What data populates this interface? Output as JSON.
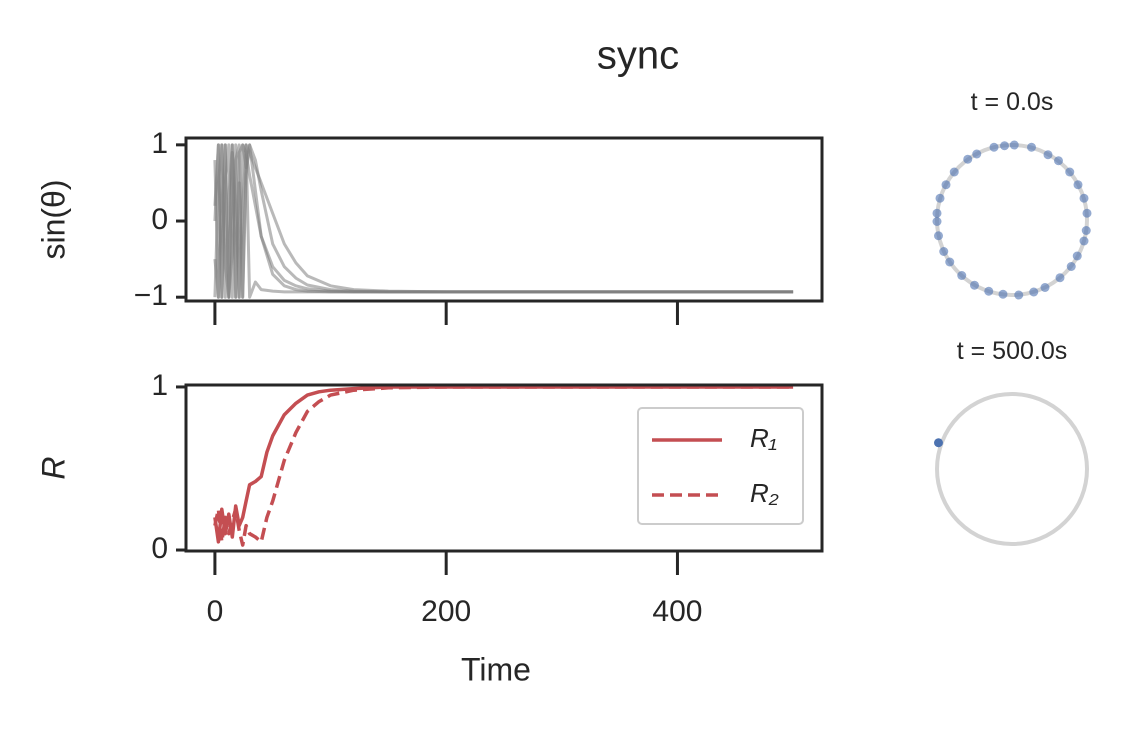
{
  "title": "sync",
  "chart_data": [
    {
      "type": "line",
      "ylabel": "sin(θ)",
      "x": [
        0,
        3,
        6,
        9,
        12,
        15,
        18,
        21,
        24,
        27,
        30,
        35,
        40,
        50,
        60,
        70,
        80,
        100,
        120,
        150,
        200,
        300,
        400,
        500
      ],
      "series": [
        {
          "color": "#808080",
          "values": [
            0.2,
            1,
            -1,
            0.5,
            1,
            -1,
            0.8,
            1,
            -1,
            0.6,
            1,
            0.4,
            -0.2,
            -0.6,
            -0.78,
            -0.85,
            -0.89,
            -0.92,
            -0.93,
            -0.93,
            -0.93,
            -0.93,
            -0.93,
            -0.93
          ]
        },
        {
          "color": "#808080",
          "values": [
            -0.5,
            -1,
            1,
            -1,
            0.3,
            1,
            -1,
            0.9,
            1,
            0.7,
            1,
            0.8,
            0.4,
            -0.3,
            -0.6,
            -0.75,
            -0.84,
            -0.9,
            -0.92,
            -0.93,
            -0.93,
            -0.93,
            -0.93,
            -0.93
          ]
        },
        {
          "color": "#808080",
          "values": [
            0.8,
            -1,
            0.2,
            1,
            -1,
            -0.4,
            1,
            -1,
            0.2,
            1,
            -1,
            -0.8,
            -0.9,
            -0.92,
            -0.93,
            -0.93,
            -0.93,
            -0.93,
            -0.93,
            -0.93,
            -0.93,
            -0.93,
            -0.93,
            -0.93
          ]
        },
        {
          "color": "#808080",
          "values": [
            -1,
            0.5,
            1,
            -0.6,
            -1,
            0.9,
            0.2,
            -1,
            1,
            0.9,
            0.6,
            0.2,
            -0.2,
            -0.7,
            -0.85,
            -0.9,
            -0.92,
            -0.93,
            -0.93,
            -0.93,
            -0.93,
            -0.93,
            -0.93,
            -0.93
          ]
        },
        {
          "color": "#808080",
          "values": [
            0,
            1,
            -1,
            1,
            -1,
            1,
            -1,
            0.5,
            -1,
            1,
            0.9,
            0.7,
            0.5,
            0.1,
            -0.3,
            -0.55,
            -0.72,
            -0.85,
            -0.9,
            -0.92,
            -0.93,
            -0.93,
            -0.93,
            -0.93
          ]
        }
      ],
      "xlim": [
        -25,
        525
      ],
      "xticks": [
        0,
        200,
        400
      ],
      "xtick_labels": false,
      "ylim": [
        -1.05,
        1.09
      ],
      "yticks": [
        {
          "value": -1,
          "label": "−1"
        },
        0,
        1
      ]
    },
    {
      "type": "line",
      "ylabel": "R",
      "xlabel": "Time",
      "x": [
        0,
        3,
        6,
        9,
        12,
        15,
        18,
        21,
        24,
        27,
        30,
        35,
        40,
        45,
        50,
        60,
        70,
        80,
        90,
        100,
        120,
        150,
        200,
        300,
        400,
        500
      ],
      "series": [
        {
          "name": "R₁",
          "color": "#c44e52",
          "linestyle": "solid",
          "values": [
            0.2,
            0.05,
            0.25,
            0.1,
            0.22,
            0.08,
            0.27,
            0.15,
            0.2,
            0.3,
            0.4,
            0.42,
            0.45,
            0.6,
            0.7,
            0.83,
            0.9,
            0.95,
            0.97,
            0.98,
            0.99,
            1,
            1,
            1,
            1,
            1
          ]
        },
        {
          "name": "R₂",
          "color": "#c44e52",
          "linestyle": "dashed",
          "values": [
            0.15,
            0.25,
            0.05,
            0.2,
            0.1,
            0.18,
            0.25,
            0.12,
            0.03,
            0.15,
            0.1,
            0.08,
            0.05,
            0.2,
            0.3,
            0.55,
            0.72,
            0.85,
            0.91,
            0.95,
            0.98,
            0.995,
            1,
            1,
            1,
            1
          ]
        }
      ],
      "xlim": [
        -25,
        525
      ],
      "xticks": [
        0,
        200,
        400
      ],
      "ylim": [
        -0.006,
        1.012
      ],
      "yticks": [
        0,
        1
      ],
      "legend": "center right"
    },
    {
      "type": "scatter",
      "title": "t = 0.0s",
      "color": "#4c72b0",
      "x": [
        1.0,
        0.96,
        0.88,
        0.77,
        0.62,
        0.48,
        0.26,
        0.03,
        -0.1,
        -0.24,
        -0.47,
        -0.59,
        -0.77,
        -0.88,
        -0.96,
        -1.0,
        -1.0,
        -0.98,
        -0.91,
        -0.83,
        -0.67,
        -0.5,
        -0.31,
        -0.12,
        0.09,
        0.29,
        0.44,
        0.64,
        0.79,
        0.87,
        0.96,
        0.99
      ],
      "values": [
        0.09,
        0.29,
        0.47,
        0.64,
        0.79,
        0.87,
        0.97,
        1.0,
        0.99,
        0.97,
        0.88,
        0.81,
        0.64,
        0.47,
        0.29,
        0.09,
        -0.02,
        -0.21,
        -0.42,
        -0.56,
        -0.74,
        -0.87,
        -0.95,
        -0.99,
        -1.0,
        -0.96,
        -0.9,
        -0.77,
        -0.62,
        -0.48,
        -0.28,
        -0.14
      ],
      "xlim": [
        -1.1,
        1.1
      ],
      "ylim": [
        -1.1,
        1.1
      ]
    },
    {
      "type": "scatter",
      "title": "t = 500.0s",
      "color": "#4c72b0",
      "x": [
        -0.98
      ],
      "values": [
        0.35
      ],
      "xlim": [
        -1.1,
        1.1
      ],
      "ylim": [
        -1.1,
        1.1
      ]
    }
  ]
}
